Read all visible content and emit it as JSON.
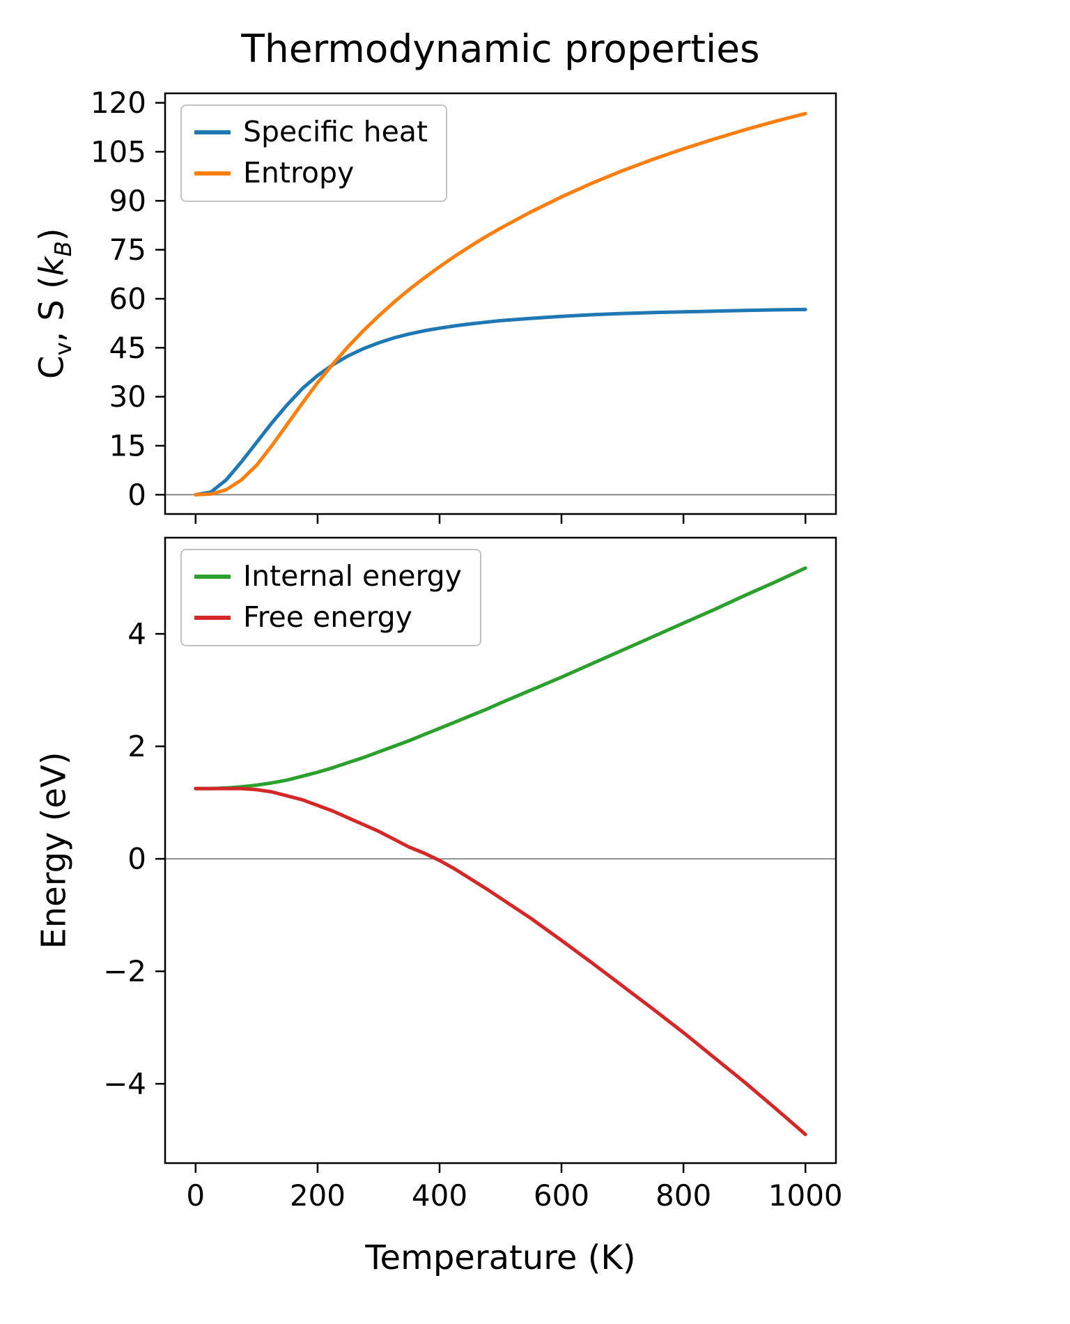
{
  "figure": {
    "title": "Thermodynamic properties",
    "background_color": "#ffffff"
  },
  "chart_data": [
    {
      "type": "line",
      "panel": "top",
      "title": "Thermodynamic properties",
      "xlabel": "",
      "ylabel": "Cv, S (kB)",
      "ylabel_parts": [
        {
          "text": "C"
        },
        {
          "text": "v",
          "style": "sub"
        },
        {
          "text": ", S ("
        },
        {
          "text": "k",
          "style": "italic"
        },
        {
          "text": "B",
          "style": "sub italic"
        },
        {
          "text": ")"
        }
      ],
      "xlim": [
        -50,
        1050
      ],
      "ylim": [
        -5.9,
        122.9
      ],
      "grid": false,
      "zero_line": true,
      "zero_line_color": "#808080",
      "legend_loc": "upper left",
      "show_xticklabels": false,
      "xticks": [
        {
          "value": 0,
          "label": "0"
        },
        {
          "value": 200,
          "label": "200"
        },
        {
          "value": 400,
          "label": "400"
        },
        {
          "value": 600,
          "label": "600"
        },
        {
          "value": 800,
          "label": "800"
        },
        {
          "value": 1000,
          "label": "1000"
        }
      ],
      "yticks": [
        {
          "value": 0,
          "label": "0"
        },
        {
          "value": 15,
          "label": "15"
        },
        {
          "value": 30,
          "label": "30"
        },
        {
          "value": 45,
          "label": "45"
        },
        {
          "value": 60,
          "label": "60"
        },
        {
          "value": 75,
          "label": "75"
        },
        {
          "value": 90,
          "label": "90"
        },
        {
          "value": 105,
          "label": "105"
        },
        {
          "value": 120,
          "label": "120"
        }
      ],
      "x": [
        0,
        25,
        50,
        75,
        100,
        125,
        150,
        175,
        200,
        225,
        250,
        275,
        300,
        325,
        350,
        375,
        400,
        425,
        450,
        475,
        500,
        550,
        600,
        650,
        700,
        750,
        800,
        850,
        900,
        950,
        1000
      ],
      "series": [
        {
          "name": "Specific heat",
          "color": "#1f77b4",
          "values": [
            0,
            0.8,
            4.5,
            10,
            16,
            22,
            27.5,
            32.5,
            36.5,
            39.8,
            42.5,
            44.7,
            46.5,
            48,
            49.2,
            50.2,
            51,
            51.7,
            52.3,
            52.8,
            53.3,
            54,
            54.6,
            55.1,
            55.5,
            55.8,
            56.0,
            56.2,
            56.4,
            56.6,
            56.7
          ]
        },
        {
          "name": "Entropy",
          "color": "#ff7f0e",
          "values": [
            0,
            0.2,
            1.5,
            4.5,
            9,
            15,
            21.5,
            28,
            34.3,
            40,
            45.3,
            50.2,
            54.7,
            58.9,
            62.8,
            66.4,
            69.8,
            73,
            76,
            78.9,
            81.6,
            86.6,
            91.2,
            95.4,
            99.2,
            102.7,
            105.9,
            108.9,
            111.7,
            114.3,
            116.7
          ]
        }
      ]
    },
    {
      "type": "line",
      "panel": "bottom",
      "title": "",
      "xlabel": "Temperature (K)",
      "ylabel": "Energy (eV)",
      "xlim": [
        -50,
        1050
      ],
      "ylim": [
        -5.41,
        5.71
      ],
      "grid": false,
      "zero_line": true,
      "zero_line_color": "#808080",
      "legend_loc": "upper left",
      "show_xticklabels": true,
      "xticks": [
        {
          "value": 0,
          "label": "0"
        },
        {
          "value": 200,
          "label": "200"
        },
        {
          "value": 400,
          "label": "400"
        },
        {
          "value": 600,
          "label": "600"
        },
        {
          "value": 800,
          "label": "800"
        },
        {
          "value": 1000,
          "label": "1000"
        }
      ],
      "yticks": [
        {
          "value": -4,
          "label": "−4"
        },
        {
          "value": -2,
          "label": "−2"
        },
        {
          "value": 0,
          "label": "0"
        },
        {
          "value": 2,
          "label": "2"
        },
        {
          "value": 4,
          "label": "4"
        }
      ],
      "x": [
        0,
        25,
        50,
        75,
        100,
        125,
        150,
        175,
        200,
        225,
        250,
        275,
        300,
        325,
        350,
        375,
        400,
        425,
        450,
        475,
        500,
        550,
        600,
        650,
        700,
        750,
        800,
        850,
        900,
        950,
        1000
      ],
      "series": [
        {
          "name": "Internal energy",
          "color": "#2ca02c",
          "values": [
            1.25,
            1.25,
            1.26,
            1.28,
            1.31,
            1.35,
            1.4,
            1.47,
            1.54,
            1.62,
            1.71,
            1.8,
            1.9,
            2.0,
            2.1,
            2.21,
            2.32,
            2.43,
            2.54,
            2.65,
            2.77,
            3.0,
            3.23,
            3.47,
            3.71,
            3.95,
            4.19,
            4.43,
            4.68,
            4.92,
            5.17
          ]
        },
        {
          "name": "Free energy",
          "color": "#d62728",
          "values": [
            1.25,
            1.25,
            1.25,
            1.25,
            1.23,
            1.19,
            1.12,
            1.05,
            0.95,
            0.85,
            0.73,
            0.61,
            0.49,
            0.35,
            0.21,
            0.1,
            -0.03,
            -0.18,
            -0.35,
            -0.52,
            -0.7,
            -1.06,
            -1.45,
            -1.85,
            -2.26,
            -2.67,
            -3.09,
            -3.53,
            -3.97,
            -4.43,
            -4.9
          ]
        }
      ]
    }
  ]
}
